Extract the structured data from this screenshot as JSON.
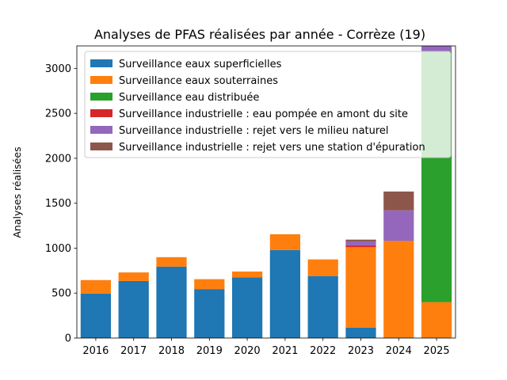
{
  "chart_data": {
    "type": "bar",
    "stacked": true,
    "title": "Analyses de PFAS réalisées par année - Corrèze (19)",
    "xlabel": "",
    "ylabel": "Analyses réalisées",
    "ylim": [
      0,
      3250
    ],
    "yticks": [
      0,
      500,
      1000,
      1500,
      2000,
      2500,
      3000
    ],
    "categories": [
      "2016",
      "2017",
      "2018",
      "2019",
      "2020",
      "2021",
      "2022",
      "2023",
      "2024",
      "2025"
    ],
    "legend_position": "top-right",
    "series": [
      {
        "name": "Surveillance eaux superficielles",
        "color": "#1f77b4",
        "values": [
          495,
          635,
          795,
          545,
          675,
          980,
          690,
          115,
          0,
          0
        ]
      },
      {
        "name": "Surveillance eaux souterraines",
        "color": "#ff7f0e",
        "values": [
          150,
          95,
          105,
          110,
          65,
          175,
          185,
          895,
          1080,
          400
        ]
      },
      {
        "name": "Surveillance eau distribuée",
        "color": "#2ca02c",
        "values": [
          0,
          0,
          0,
          0,
          0,
          0,
          0,
          0,
          0,
          2790
        ]
      },
      {
        "name": "Surveillance industrielle : eau pompée en amont du site",
        "color": "#d62728",
        "values": [
          0,
          0,
          0,
          0,
          0,
          0,
          0,
          20,
          0,
          0
        ]
      },
      {
        "name": "Surveillance industrielle : rejet vers le milieu naturel",
        "color": "#9467bd",
        "values": [
          0,
          0,
          0,
          0,
          0,
          0,
          0,
          45,
          340,
          60
        ]
      },
      {
        "name": "Surveillance industrielle : rejet vers une station d'épuration",
        "color": "#8c564b",
        "values": [
          0,
          0,
          0,
          0,
          0,
          0,
          0,
          20,
          210,
          0
        ]
      }
    ]
  }
}
